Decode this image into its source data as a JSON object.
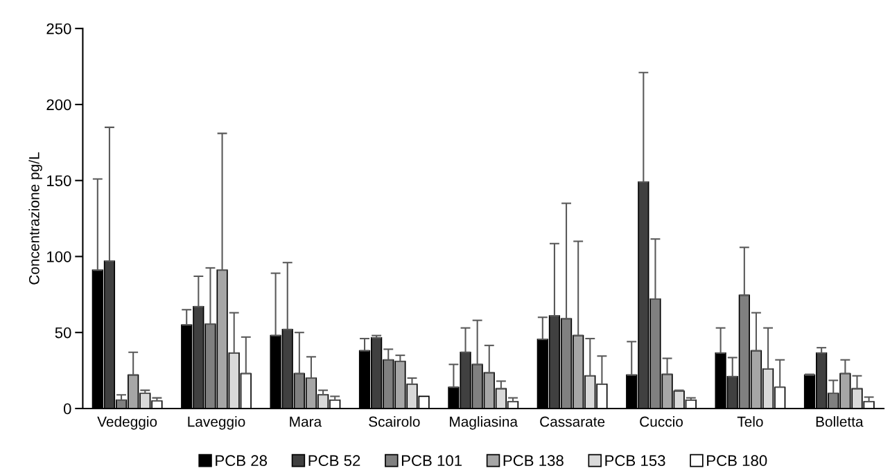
{
  "chart_data": {
    "type": "bar",
    "ylabel": "Concentrazione pg/L",
    "categories": [
      "Vedeggio",
      "Laveggio",
      "Mara",
      "Scairolo",
      "Magliasina",
      "Cassarate",
      "Cuccio",
      "Telo",
      "Bolletta"
    ],
    "series": [
      {
        "name": "PCB 28",
        "color": "#000000",
        "values": [
          91,
          55,
          48,
          38,
          14,
          45.5,
          22,
          36.5,
          22
        ],
        "errors": [
          [
            91,
            151
          ],
          [
            55,
            65
          ],
          [
            48,
            89
          ],
          [
            38,
            46
          ],
          [
            14,
            29
          ],
          [
            45.5,
            60
          ],
          [
            22,
            44
          ],
          [
            36.5,
            53
          ],
          [
            22,
            22.5
          ]
        ]
      },
      {
        "name": "PCB 52",
        "color": "#404040",
        "values": [
          97,
          67,
          52,
          46.5,
          37,
          61,
          149,
          21,
          36.5
        ],
        "errors": [
          [
            97,
            185
          ],
          [
            67,
            87
          ],
          [
            52,
            96
          ],
          [
            46.5,
            48
          ],
          [
            37,
            53
          ],
          [
            61,
            108.5
          ],
          [
            149,
            221
          ],
          [
            21,
            33.5
          ],
          [
            36.5,
            40
          ]
        ]
      },
      {
        "name": "PCB 101",
        "color": "#808080",
        "values": [
          5.5,
          55.5,
          23,
          32,
          29,
          59,
          72,
          74.5,
          10
        ],
        "errors": [
          [
            5.5,
            9
          ],
          [
            55.5,
            92.5
          ],
          [
            23,
            50
          ],
          [
            32,
            39
          ],
          [
            29,
            58
          ],
          [
            59,
            135
          ],
          [
            72,
            111.5
          ],
          [
            74.5,
            106
          ],
          [
            10,
            18.5
          ]
        ]
      },
      {
        "name": "PCB 138",
        "color": "#a6a6a6",
        "values": [
          22,
          91,
          20,
          31,
          23.5,
          48,
          22.5,
          38,
          23
        ],
        "errors": [
          [
            22,
            37
          ],
          [
            91,
            181
          ],
          [
            20,
            34
          ],
          [
            31,
            35
          ],
          [
            23.5,
            41.5
          ],
          [
            48,
            110
          ],
          [
            22.5,
            33
          ],
          [
            38,
            63
          ],
          [
            23,
            32
          ]
        ]
      },
      {
        "name": "PCB 153",
        "color": "#d9d9d9",
        "values": [
          10,
          36.5,
          9,
          16,
          13,
          21.5,
          11.5,
          26,
          13
        ],
        "errors": [
          [
            10,
            12
          ],
          [
            36.5,
            63
          ],
          [
            9,
            12
          ],
          [
            16,
            20
          ],
          [
            13,
            18
          ],
          [
            21.5,
            46
          ],
          [
            11.5,
            12
          ],
          [
            26,
            53
          ],
          [
            13,
            21.5
          ]
        ]
      },
      {
        "name": "PCB 180",
        "color": "#ffffff",
        "values": [
          5,
          23,
          5.5,
          8,
          4.5,
          16,
          5.5,
          14,
          4.5
        ],
        "errors": [
          [
            5,
            7
          ],
          [
            23,
            47
          ],
          [
            5.5,
            8
          ],
          null,
          [
            4.5,
            7
          ],
          [
            16,
            34.5
          ],
          [
            5.5,
            7
          ],
          [
            14,
            32
          ],
          [
            4.5,
            7.5
          ]
        ]
      }
    ],
    "ylim": [
      0,
      250
    ],
    "yticks": [
      0,
      50,
      100,
      150,
      200,
      250
    ],
    "grid": false,
    "legend": "bottom"
  }
}
